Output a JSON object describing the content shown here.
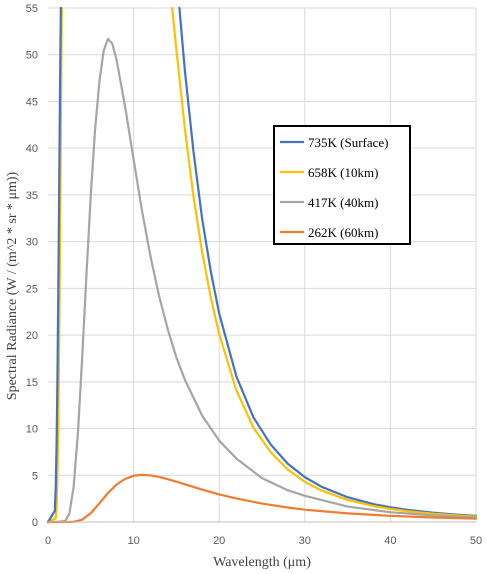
{
  "chart_data": {
    "type": "line",
    "title": "",
    "xlabel": "Wavelength (μm)",
    "ylabel": "Spectral Radiance (W / (m^2 * sr * μm))",
    "xlim": [
      0,
      50
    ],
    "ylim": [
      0,
      55
    ],
    "xticks": [
      "0",
      "10",
      "20",
      "30",
      "40",
      "50"
    ],
    "yticks": [
      "0",
      "5",
      "10",
      "15",
      "20",
      "25",
      "30",
      "35",
      "40",
      "45",
      "50",
      "55"
    ],
    "grid": true,
    "legend_position": "right",
    "series": [
      {
        "name": "735K (Surface)",
        "color": "#4472C4",
        "x": [
          15.35,
          16,
          17,
          18,
          19,
          20,
          22,
          24,
          26,
          28,
          30,
          32,
          35,
          38,
          40,
          42,
          45,
          48,
          50
        ],
        "y": [
          55,
          48.2,
          39.6,
          32.5,
          26.9,
          22.3,
          15.6,
          11.2,
          8.31,
          6.25,
          4.8,
          3.75,
          2.65,
          1.92,
          1.57,
          1.3,
          0.99,
          0.77,
          0.66
        ]
      },
      {
        "name": "658K (10km)",
        "color": "#FFC000",
        "x": [
          14.5,
          15,
          16,
          17,
          18,
          19,
          20,
          22,
          24,
          26,
          28,
          30,
          32,
          35,
          38,
          40,
          42,
          45,
          48,
          50
        ],
        "y": [
          55,
          50.5,
          42.0,
          34.8,
          28.9,
          24.1,
          20.1,
          14.1,
          10.1,
          7.49,
          5.62,
          4.3,
          3.35,
          2.36,
          1.71,
          1.4,
          1.15,
          0.88,
          0.68,
          0.58
        ]
      },
      {
        "name": "417K (40km)",
        "color": "#A5A5A5",
        "x": [
          0,
          1,
          2,
          2.5,
          3,
          3.5,
          4,
          4.5,
          5,
          5.5,
          6,
          6.5,
          7,
          7.5,
          8,
          9,
          10,
          11,
          12,
          13,
          14,
          15,
          16,
          18,
          20,
          22,
          25,
          28,
          30,
          35,
          40,
          45,
          50
        ],
        "y": [
          0,
          0.0,
          0.1,
          0.9,
          3.8,
          9.6,
          17.7,
          26.6,
          35.0,
          42.0,
          47.1,
          50.4,
          51.7,
          51.2,
          49.5,
          44.5,
          38.8,
          33.2,
          28.3,
          24.1,
          20.6,
          17.6,
          15.2,
          11.4,
          8.7,
          6.8,
          4.7,
          3.4,
          2.8,
          1.65,
          1.05,
          0.7,
          0.48
        ]
      },
      {
        "name": "262K (60km)",
        "color": "#ED7D31",
        "x": [
          0,
          2,
          3,
          4,
          5,
          6,
          7,
          8,
          9,
          10,
          11,
          12,
          13,
          14,
          15,
          16,
          18,
          20,
          22,
          25,
          28,
          30,
          35,
          40,
          45,
          50
        ],
        "y": [
          0,
          0,
          0.02,
          0.25,
          0.95,
          2.0,
          3.1,
          4.0,
          4.6,
          4.95,
          5.05,
          4.98,
          4.82,
          4.58,
          4.32,
          4.03,
          3.47,
          2.95,
          2.52,
          1.97,
          1.55,
          1.32,
          0.92,
          0.66,
          0.48,
          0.36
        ]
      },
      {
        "name": "",
        "color": "#FFC000",
        "x": [
          0,
          0.9,
          1.0,
          1.1,
          1.2,
          1.3,
          1.4,
          1.5,
          1.6
        ],
        "y": [
          0,
          0.4,
          1.6,
          4.8,
          10.6,
          19.0,
          29.5,
          41.5,
          55
        ]
      },
      {
        "name": "",
        "color": "#4472C4",
        "x": [
          0,
          0.8,
          0.9,
          1.0,
          1.1,
          1.2,
          1.3,
          1.4,
          1.5
        ],
        "y": [
          0,
          1.2,
          3.6,
          8.2,
          15.3,
          24.5,
          35.0,
          46.0,
          55
        ]
      }
    ]
  }
}
